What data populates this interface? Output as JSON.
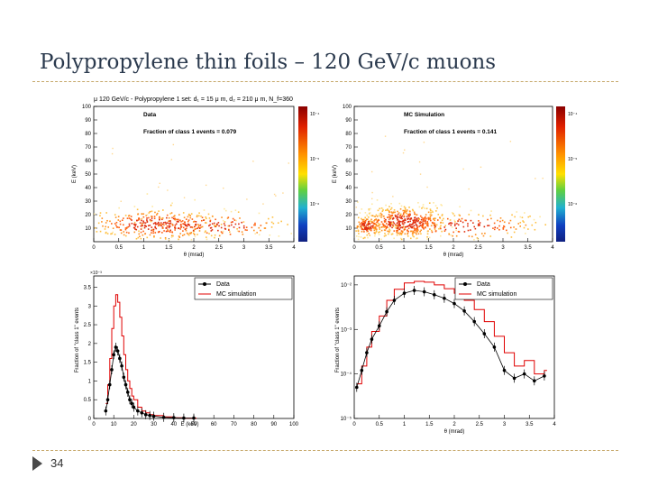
{
  "slide": {
    "title": "Polypropylene thin foils – 120 GeV/c muons",
    "page_number": "34"
  },
  "figure_header": "μ 120 GeV/c - Polypropylene 1 set: d₁ = 15 μ m, d₂ = 210 μ m, N_f=360",
  "colors": {
    "data": "#000000",
    "mc": "#e00000",
    "accent": "#c6a86a"
  },
  "chart_data": [
    {
      "type": "heatmap",
      "id": "data-2d",
      "label": "Data",
      "annotation": "Fraction of class 1 events = 0.079",
      "xlabel": "θ (mrad)",
      "ylabel": "E (keV)",
      "xlim": [
        0,
        4
      ],
      "ylim": [
        0,
        100
      ],
      "xticks": [
        "0",
        "0.5",
        "1",
        "1.5",
        "2",
        "2.5",
        "3",
        "3.5",
        "4"
      ],
      "yticks": [
        "10",
        "20",
        "30",
        "40",
        "50",
        "60",
        "70",
        "80",
        "90",
        "100"
      ],
      "colorbar_ticks": [
        "10⁻⁴",
        "10⁻⁵",
        "10⁻⁶"
      ],
      "blobs": [
        {
          "cx": 1.2,
          "cy": 13,
          "sx": 0.7,
          "sy": 6,
          "n": 360
        },
        {
          "cx": 2.4,
          "cy": 12,
          "sx": 0.8,
          "sy": 5,
          "n": 140
        }
      ]
    },
    {
      "type": "heatmap",
      "id": "mc-2d",
      "label": "MC Simulation",
      "annotation": "Fraction of class 1 events = 0.141",
      "xlabel": "θ (mrad)",
      "ylabel": "E (keV)",
      "xlim": [
        0,
        4
      ],
      "ylim": [
        0,
        100
      ],
      "xticks": [
        "0",
        "0.5",
        "1",
        "1.5",
        "2",
        "2.5",
        "3",
        "3.5",
        "4"
      ],
      "yticks": [
        "10",
        "20",
        "30",
        "40",
        "50",
        "60",
        "70",
        "80",
        "90",
        "100"
      ],
      "colorbar_ticks": [
        "10⁻⁴",
        "10⁻⁵",
        "10⁻⁶"
      ],
      "blobs": [
        {
          "cx": 1.0,
          "cy": 15,
          "sx": 0.45,
          "sy": 6,
          "n": 480
        },
        {
          "cx": 0.25,
          "cy": 12,
          "sx": 0.15,
          "sy": 4,
          "n": 120
        },
        {
          "cx": 2.2,
          "cy": 12,
          "sx": 0.8,
          "sy": 5,
          "n": 160
        }
      ]
    },
    {
      "type": "line",
      "id": "energy-1d",
      "xlabel": "E (keV)",
      "ylabel": "Fraction of \"class 1\" events",
      "xlim": [
        0,
        100
      ],
      "ylim": [
        0,
        0.0038
      ],
      "multiplier": "×10⁻³",
      "xticks": [
        "0",
        "10",
        "20",
        "30",
        "40",
        "50",
        "60",
        "70",
        "80",
        "90",
        "100"
      ],
      "yticks": [
        "0",
        "0.5",
        "1",
        "1.5",
        "2",
        "2.5",
        "3",
        "3.5"
      ],
      "legend": [
        "Data",
        "MC simulation"
      ],
      "series": [
        {
          "name": "Data",
          "x": [
            6,
            7,
            8,
            9,
            10,
            11,
            12,
            13,
            14,
            15,
            16,
            17,
            18,
            19,
            20,
            22,
            24,
            26,
            28,
            30,
            35,
            40,
            45,
            50
          ],
          "values": [
            0.0002,
            0.0005,
            0.0009,
            0.0013,
            0.0017,
            0.0019,
            0.0018,
            0.0016,
            0.0014,
            0.0011,
            0.0009,
            0.0007,
            0.0005,
            0.0004,
            0.0003,
            0.0002,
            0.00015,
            0.0001,
            8e-05,
            6e-05,
            3e-05,
            2e-05,
            1e-05,
            1e-05
          ]
        },
        {
          "name": "MC simulation",
          "x": [
            6,
            7,
            8,
            9,
            10,
            11,
            12,
            13,
            14,
            15,
            16,
            17,
            18,
            19,
            20,
            22,
            24,
            26,
            28,
            30,
            35,
            40,
            45,
            50
          ],
          "values": [
            0.0004,
            0.0009,
            0.0016,
            0.0024,
            0.003,
            0.0033,
            0.0031,
            0.0027,
            0.0022,
            0.0017,
            0.0013,
            0.001,
            0.0008,
            0.0006,
            0.0005,
            0.0003,
            0.0002,
            0.00015,
            0.0001,
            8e-05,
            4e-05,
            2e-05,
            1e-05,
            1e-05
          ]
        }
      ]
    },
    {
      "type": "line",
      "id": "theta-1d",
      "xlabel": "θ (mrad)",
      "ylabel": "Fraction of \"class 1\" events",
      "xlim": [
        0,
        4
      ],
      "log_y": true,
      "ylog_decades": [
        -5,
        -2
      ],
      "xticks": [
        "0",
        "0.5",
        "1",
        "1.5",
        "2",
        "2.5",
        "3",
        "3.5",
        "4"
      ],
      "yticks": [
        "10⁻⁵",
        "10⁻⁴",
        "10⁻³",
        "10⁻²"
      ],
      "legend": [
        "Data",
        "MC simulation"
      ],
      "series": [
        {
          "name": "Data",
          "x": [
            0.05,
            0.15,
            0.25,
            0.35,
            0.5,
            0.65,
            0.8,
            1.0,
            1.2,
            1.4,
            1.6,
            1.8,
            2.0,
            2.2,
            2.4,
            2.6,
            2.8,
            3.0,
            3.2,
            3.4,
            3.6,
            3.8
          ],
          "values": [
            5e-05,
            0.00012,
            0.0003,
            0.0006,
            0.0012,
            0.0025,
            0.0045,
            0.0065,
            0.0075,
            0.007,
            0.006,
            0.005,
            0.0038,
            0.0026,
            0.0015,
            0.0008,
            0.0004,
            0.00012,
            8e-05,
            0.0001,
            7e-05,
            9e-05
          ]
        },
        {
          "name": "MC simulation",
          "x": [
            0.05,
            0.15,
            0.25,
            0.35,
            0.5,
            0.65,
            0.8,
            1.0,
            1.2,
            1.4,
            1.6,
            1.8,
            2.0,
            2.2,
            2.4,
            2.6,
            2.8,
            3.0,
            3.2,
            3.4,
            3.6,
            3.8
          ],
          "values": [
            6e-05,
            0.00015,
            0.0004,
            0.0009,
            0.002,
            0.0045,
            0.008,
            0.011,
            0.012,
            0.0115,
            0.01,
            0.0082,
            0.0065,
            0.0045,
            0.0028,
            0.0015,
            0.0007,
            0.0003,
            0.00015,
            0.0002,
            0.0001,
            0.00012
          ]
        }
      ]
    }
  ]
}
